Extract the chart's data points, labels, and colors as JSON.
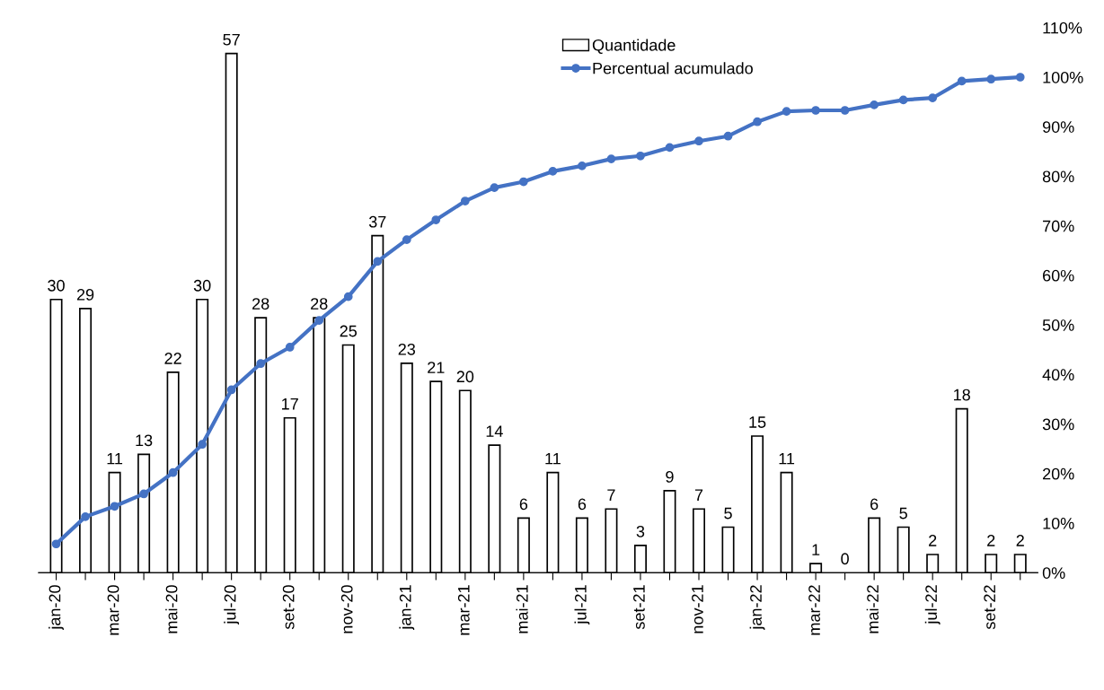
{
  "chart_data": {
    "type": "bar",
    "categories": [
      "jan-20",
      null,
      "mar-20",
      null,
      "mai-20",
      null,
      "jul-20",
      null,
      "set-20",
      null,
      "nov-20",
      null,
      "jan-21",
      null,
      "mar-21",
      null,
      "mai-21",
      null,
      "jul-21",
      null,
      "set-21",
      null,
      "nov-21",
      null,
      "jan-22",
      null,
      "mar-22",
      null,
      "mai-22",
      null,
      "jul-22",
      null,
      "set-22",
      null
    ],
    "series": [
      {
        "name": "Quantidade",
        "color": "#ffffff",
        "values": [
          30,
          29,
          11,
          13,
          22,
          30,
          57,
          28,
          17,
          28,
          25,
          37,
          23,
          21,
          20,
          14,
          6,
          11,
          6,
          7,
          3,
          9,
          7,
          5,
          15,
          11,
          1,
          0,
          6,
          5,
          2,
          18,
          2,
          2
        ],
        "value_labels": [
          "30",
          "29",
          "11",
          "13",
          "22",
          "30",
          "57",
          "28",
          "17",
          "28",
          "25",
          "37",
          "23",
          "21",
          "20",
          "14",
          "6",
          "11",
          "6",
          "7",
          "3",
          "9",
          "7",
          "5",
          "15",
          "11",
          "1",
          "0",
          "6",
          "5",
          "2",
          "18",
          "2",
          "2"
        ]
      },
      {
        "name": "Percentual acumulado",
        "type": "line",
        "axis": "y2",
        "color": "#4472c4",
        "values": [
          5.8,
          11.3,
          13.4,
          15.9,
          20.2,
          25.9,
          36.9,
          42.2,
          45.5,
          50.9,
          55.7,
          62.8,
          67.2,
          71.2,
          75.0,
          77.7,
          78.9,
          81.0,
          82.1,
          83.5,
          84.1,
          85.8,
          87.1,
          88.1,
          91.0,
          93.1,
          93.3,
          93.3,
          94.4,
          95.4,
          95.8,
          99.2,
          99.6,
          100.0
        ]
      }
    ],
    "y2lim": [
      0,
      110
    ],
    "y2ticks": [
      {
        "value": 0,
        "label": "0%"
      },
      {
        "value": 10,
        "label": "10%"
      },
      {
        "value": 20,
        "label": "20%"
      },
      {
        "value": 30,
        "label": "30%"
      },
      {
        "value": 40,
        "label": "40%"
      },
      {
        "value": 50,
        "label": "50%"
      },
      {
        "value": 60,
        "label": "60%"
      },
      {
        "value": 70,
        "label": "70%"
      },
      {
        "value": 80,
        "label": "80%"
      },
      {
        "value": 90,
        "label": "90%"
      },
      {
        "value": 100,
        "label": "100%"
      },
      {
        "value": 110,
        "label": "110%"
      }
    ],
    "marker": "circle",
    "line_style": "solid",
    "grid": false,
    "legend": "top"
  }
}
